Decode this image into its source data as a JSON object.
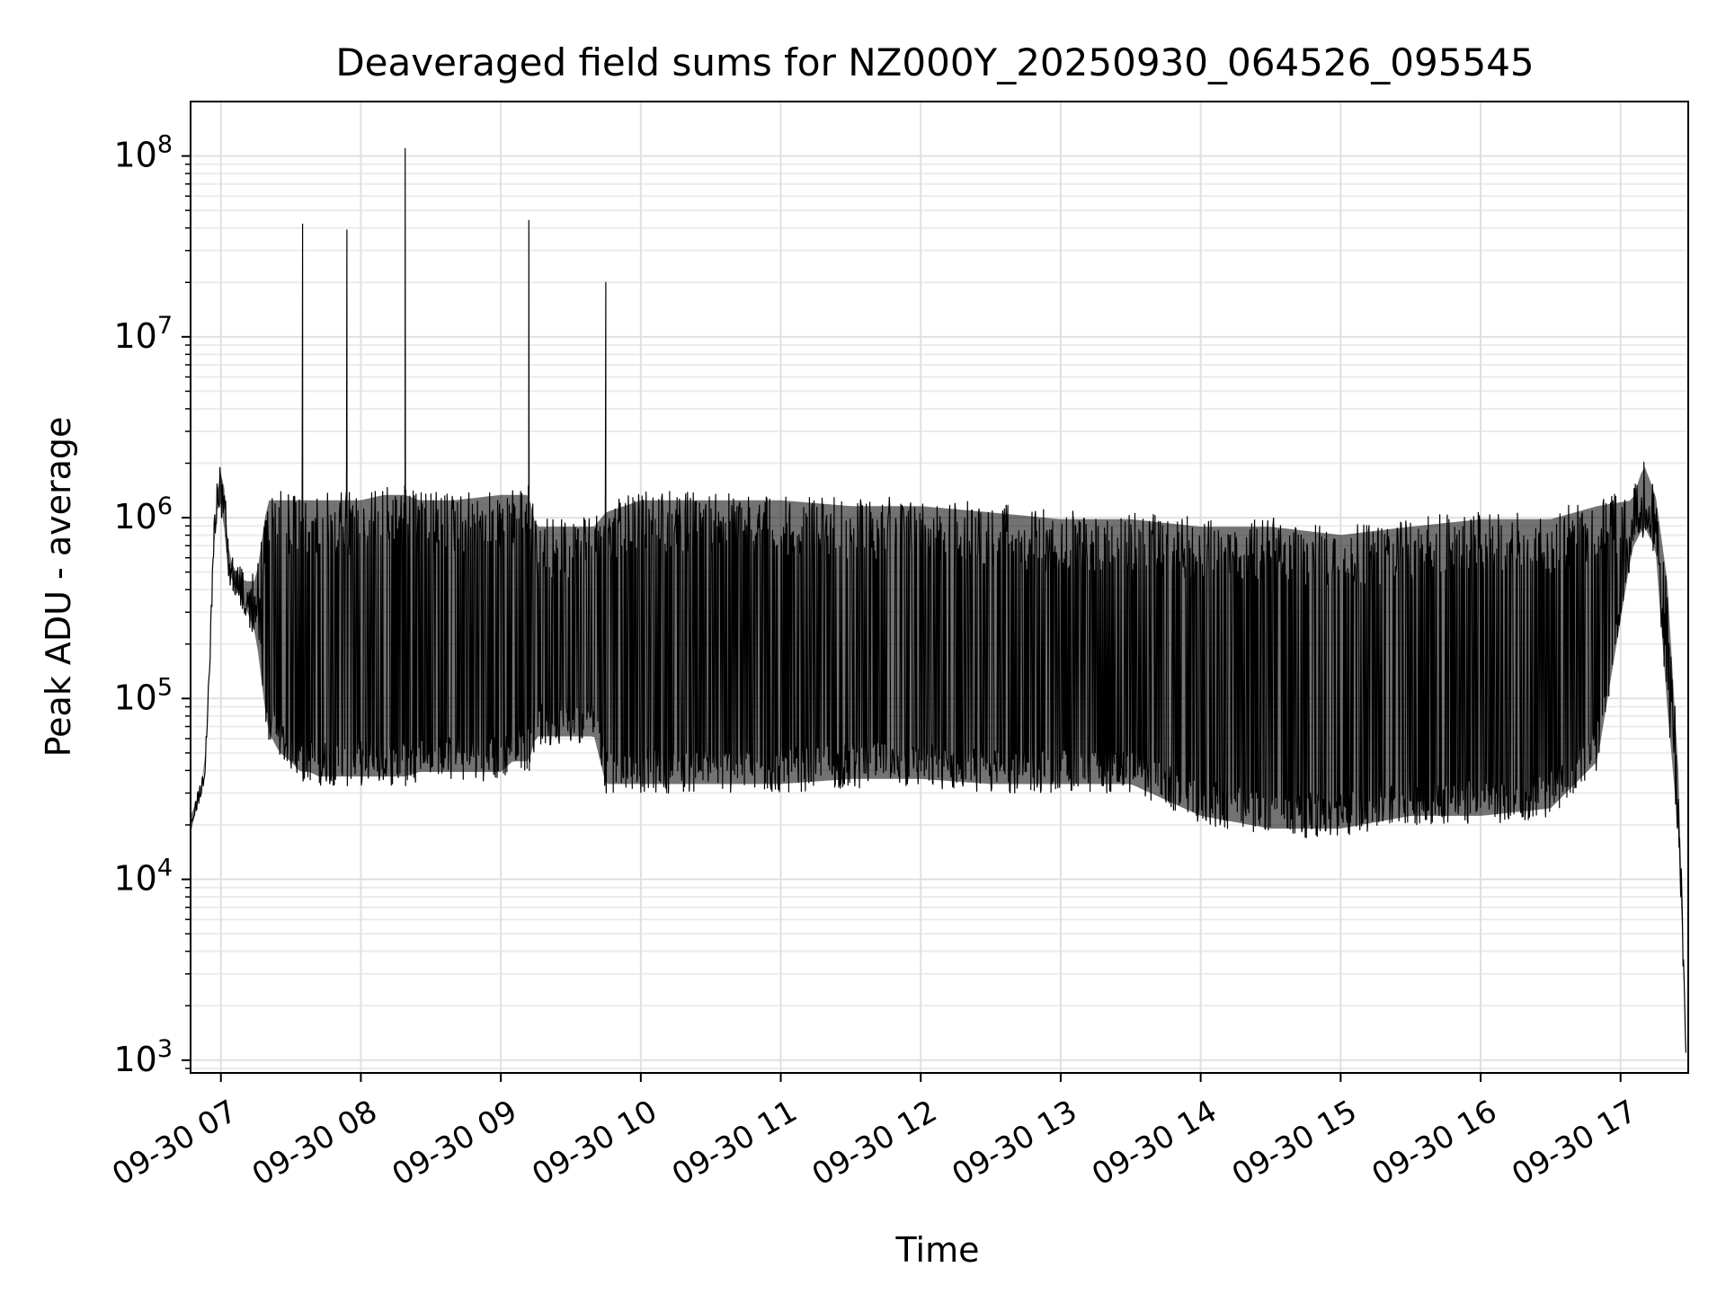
{
  "chart_data": {
    "type": "line",
    "title": "Deaveraged field sums for NZ000Y_20250930_064526_095545",
    "xlabel": "Time",
    "ylabel": "Peak ADU - average",
    "xlim": [
      "2025-09-30T06:47:00",
      "2025-09-30T17:29:00"
    ],
    "ylim": [
      850,
      200000000
    ],
    "yscale": "log",
    "grid": true,
    "x_ticks": [
      {
        "value": "2025-09-30T07:00:00",
        "label": "09-30 07"
      },
      {
        "value": "2025-09-30T08:00:00",
        "label": "09-30 08"
      },
      {
        "value": "2025-09-30T09:00:00",
        "label": "09-30 09"
      },
      {
        "value": "2025-09-30T10:00:00",
        "label": "09-30 10"
      },
      {
        "value": "2025-09-30T11:00:00",
        "label": "09-30 11"
      },
      {
        "value": "2025-09-30T12:00:00",
        "label": "09-30 12"
      },
      {
        "value": "2025-09-30T13:00:00",
        "label": "09-30 13"
      },
      {
        "value": "2025-09-30T14:00:00",
        "label": "09-30 14"
      },
      {
        "value": "2025-09-30T15:00:00",
        "label": "09-30 15"
      },
      {
        "value": "2025-09-30T16:00:00",
        "label": "09-30 16"
      },
      {
        "value": "2025-09-30T17:00:00",
        "label": "09-30 17"
      }
    ],
    "y_ticks": [
      {
        "value": 1000,
        "base": "10",
        "exp": "3"
      },
      {
        "value": 10000,
        "base": "10",
        "exp": "4"
      },
      {
        "value": 100000,
        "base": "10",
        "exp": "5"
      },
      {
        "value": 1000000,
        "base": "10",
        "exp": "6"
      },
      {
        "value": 10000000,
        "base": "10",
        "exp": "7"
      },
      {
        "value": 100000000,
        "base": "10",
        "exp": "8"
      }
    ],
    "series": [
      {
        "color": "#000000",
        "x": [
          "2025-09-30T06:47:00",
          "2025-09-30T06:50:00",
          "2025-09-30T06:53:00",
          "2025-09-30T06:55:00",
          "2025-09-30T06:57:00",
          "2025-09-30T06:59:00",
          "2025-09-30T07:01:00",
          "2025-09-30T07:03:00",
          "2025-09-30T07:05:00",
          "2025-09-30T07:10:00",
          "2025-09-30T07:15:00",
          "2025-09-30T07:20:00",
          "2025-09-30T07:25:00",
          "2025-09-30T07:30:00",
          "2025-09-30T07:34:00",
          "2025-09-30T07:35:00",
          "2025-09-30T07:38:00",
          "2025-09-30T07:42:00",
          "2025-09-30T07:50:00",
          "2025-09-30T07:53:00",
          "2025-09-30T07:54:00",
          "2025-09-30T08:00:00",
          "2025-09-30T08:10:00",
          "2025-09-30T08:18:00",
          "2025-09-30T08:19:00",
          "2025-09-30T08:25:00",
          "2025-09-30T08:40:00",
          "2025-09-30T09:00:00",
          "2025-09-30T09:05:00",
          "2025-09-30T09:11:00",
          "2025-09-30T09:12:00",
          "2025-09-30T09:15:00",
          "2025-09-30T09:30:00",
          "2025-09-30T09:40:00",
          "2025-09-30T09:45:00",
          "2025-09-30T10:00:00",
          "2025-09-30T10:30:00",
          "2025-09-30T11:00:00",
          "2025-09-30T11:30:00",
          "2025-09-30T12:00:00",
          "2025-09-30T12:30:00",
          "2025-09-30T13:00:00",
          "2025-09-30T13:30:00",
          "2025-09-30T14:00:00",
          "2025-09-30T14:30:00",
          "2025-09-30T15:00:00",
          "2025-09-30T15:30:00",
          "2025-09-30T16:00:00",
          "2025-09-30T16:30:00",
          "2025-09-30T16:50:00",
          "2025-09-30T17:05:00",
          "2025-09-30T17:10:00",
          "2025-09-30T17:15:00",
          "2025-09-30T17:20:00",
          "2025-09-30T17:25:00",
          "2025-09-30T17:28:00"
        ],
        "y": [
          20000,
          30000,
          40000,
          150000,
          900000,
          1500000,
          1800000,
          700000,
          550000,
          450000,
          300000,
          180000,
          90000,
          60000,
          70000,
          42000000,
          900000,
          1000000,
          45000,
          50000,
          39000000,
          45000,
          42000,
          50000,
          110000000,
          45000,
          50000,
          50000,
          60000,
          80000,
          44000000,
          600000,
          650000,
          700000,
          20000000,
          400000,
          500000,
          450000,
          400000,
          350000,
          300000,
          250000,
          200000,
          100000,
          90000,
          80000,
          100000,
          150000,
          250000,
          700000,
          1000000,
          3200000,
          1200000,
          300000,
          40000,
          1100
        ],
        "envelope_upper": [
          20000,
          30000,
          40000,
          150000,
          900000,
          2000000,
          2000000,
          800000,
          600000,
          500000,
          500000,
          1400000,
          1400000,
          1400000,
          1400000,
          1400000,
          1400000,
          1400000,
          1400000,
          1400000,
          1400000,
          1400000,
          1500000,
          1500000,
          1500000,
          1400000,
          1400000,
          1500000,
          1500000,
          1500000,
          1500000,
          1000000,
          1000000,
          1000000,
          1200000,
          1400000,
          1400000,
          1400000,
          1300000,
          1300000,
          1200000,
          1100000,
          1100000,
          1000000,
          1000000,
          900000,
          1000000,
          1100000,
          1100000,
          1300000,
          1400000,
          2200000,
          1500000,
          500000,
          40000,
          1100
        ],
        "envelope_lower": [
          20000,
          25000,
          35000,
          120000,
          700000,
          1200000,
          900000,
          450000,
          400000,
          300000,
          200000,
          60000,
          45000,
          40000,
          35000,
          35000,
          35000,
          33000,
          33000,
          33000,
          33000,
          33000,
          33000,
          33000,
          33000,
          35000,
          35000,
          35000,
          40000,
          40000,
          40000,
          55000,
          55000,
          55000,
          30000,
          30000,
          30000,
          30000,
          32000,
          32000,
          30000,
          30000,
          30000,
          20000,
          17000,
          17000,
          20000,
          20000,
          22000,
          40000,
          600000,
          800000,
          600000,
          80000,
          15000,
          1100
        ]
      }
    ]
  }
}
